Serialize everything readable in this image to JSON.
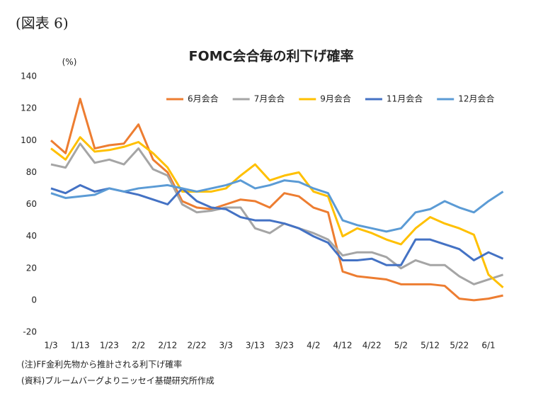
{
  "header": "(図表 6)",
  "chart_data": {
    "type": "line",
    "title": "FOMC会合毎の利下げ確率",
    "y_label": "(%)",
    "categories": [
      "1/3",
      null,
      "1/13",
      null,
      "1/23",
      null,
      "2/2",
      null,
      "2/12",
      null,
      "2/22",
      null,
      "3/3",
      null,
      "3/13",
      null,
      "3/23",
      null,
      "4/2",
      null,
      "4/12",
      null,
      "4/22",
      null,
      "5/2",
      null,
      "5/12",
      null,
      "5/22",
      null,
      "6/1",
      null
    ],
    "series": [
      {
        "name": "6月会合",
        "color": "#ed7d31",
        "values": [
          100,
          92,
          126,
          95,
          97,
          98,
          110,
          88,
          80,
          62,
          58,
          57,
          60,
          63,
          62,
          58,
          67,
          65,
          58,
          55,
          18,
          15,
          14,
          13,
          10,
          10,
          10,
          9,
          1,
          0,
          1,
          3
        ]
      },
      {
        "name": "7月会合",
        "color": "#a5a5a5",
        "values": [
          85,
          83,
          98,
          86,
          88,
          85,
          95,
          82,
          78,
          60,
          55,
          56,
          58,
          58,
          45,
          42,
          48,
          45,
          42,
          38,
          28,
          30,
          30,
          27,
          20,
          25,
          22,
          22,
          15,
          10,
          13,
          16
        ]
      },
      {
        "name": "9月会合",
        "color": "#ffc000",
        "values": [
          95,
          88,
          102,
          93,
          94,
          96,
          99,
          92,
          83,
          68,
          68,
          68,
          70,
          78,
          85,
          75,
          78,
          80,
          68,
          65,
          40,
          45,
          42,
          38,
          35,
          45,
          52,
          48,
          45,
          41,
          16,
          8
        ]
      },
      {
        "name": "11月会合",
        "color": "#4472c4",
        "values": [
          70,
          67,
          72,
          68,
          70,
          68,
          66,
          63,
          60,
          70,
          62,
          58,
          57,
          52,
          50,
          50,
          48,
          45,
          40,
          36,
          25,
          25,
          26,
          22,
          22,
          38,
          38,
          35,
          32,
          25,
          30,
          26
        ]
      },
      {
        "name": "12月会合",
        "color": "#5b9bd5",
        "values": [
          67,
          64,
          65,
          66,
          70,
          68,
          70,
          71,
          72,
          70,
          68,
          70,
          72,
          75,
          70,
          72,
          75,
          74,
          70,
          67,
          50,
          47,
          45,
          43,
          45,
          55,
          57,
          62,
          58,
          55,
          62,
          68
        ]
      }
    ],
    "ylim": [
      -20,
      140
    ],
    "yticks": [
      -20,
      0,
      20,
      40,
      60,
      80,
      100,
      120,
      140
    ],
    "grid": false,
    "legend": "top-right"
  },
  "notes": [
    "(注)FF金利先物から推計される利下げ確率",
    "(資料)ブルームバーグよりニッセイ基礎研究所作成"
  ]
}
